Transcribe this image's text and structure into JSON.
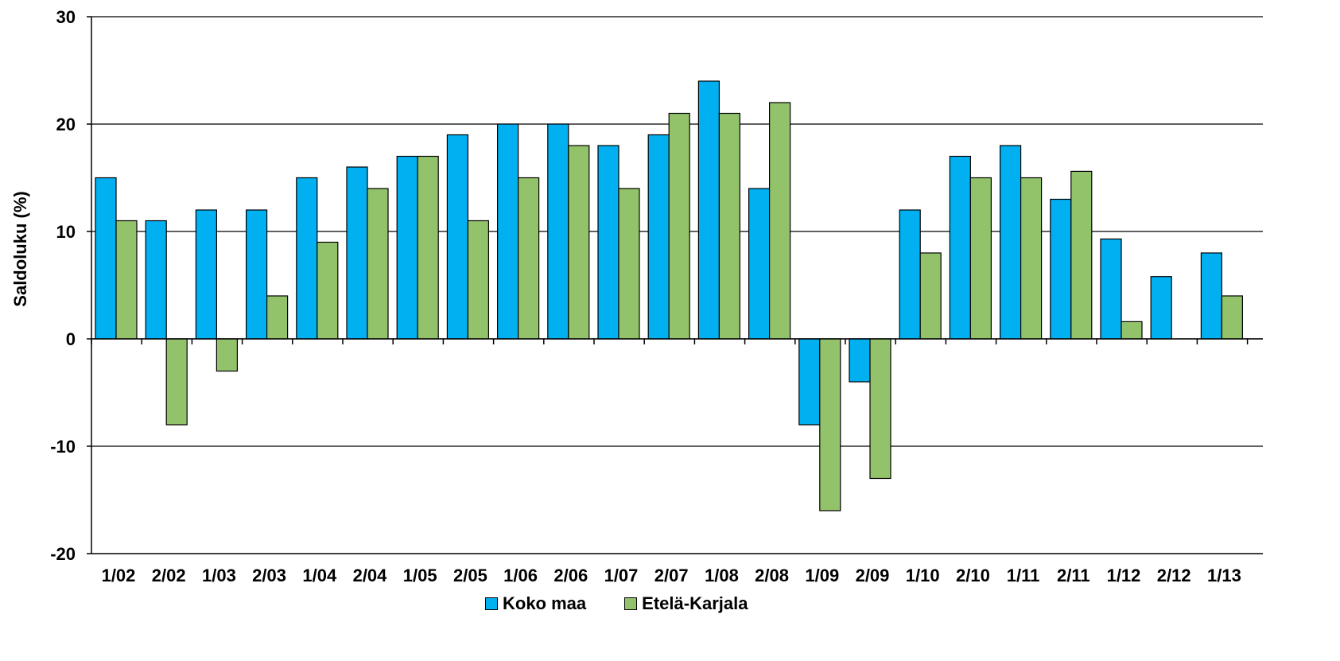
{
  "chart_data": {
    "type": "bar",
    "title": "",
    "xlabel": "",
    "ylabel": "Saldoluku (%)",
    "ylim": [
      -20,
      30
    ],
    "yticks": [
      -20,
      -10,
      0,
      10,
      20,
      30
    ],
    "grid": true,
    "legend_position": "bottom",
    "categories": [
      "1/02",
      "2/02",
      "1/03",
      "2/03",
      "1/04",
      "2/04",
      "1/05",
      "2/05",
      "1/06",
      "2/06",
      "1/07",
      "2/07",
      "1/08",
      "2/08",
      "1/09",
      "2/09",
      "1/10",
      "2/10",
      "1/11",
      "2/11",
      "1/12",
      "2/12",
      "1/13"
    ],
    "series": [
      {
        "name": "Koko maa",
        "color": "#00b0f0",
        "values": [
          15,
          11,
          12,
          12,
          15,
          16,
          17,
          19,
          20,
          20,
          18,
          19,
          24,
          14,
          -8,
          -4,
          12,
          17,
          18,
          13,
          9.3,
          5.8,
          8
        ]
      },
      {
        "name": "Etelä-Karjala",
        "color": "#92c36b",
        "values": [
          11,
          -8,
          -3,
          4,
          9,
          14,
          17,
          11,
          15,
          18,
          14,
          21,
          21,
          22,
          -16,
          -13,
          8,
          15,
          15,
          15.6,
          1.6,
          null,
          4
        ]
      }
    ]
  }
}
